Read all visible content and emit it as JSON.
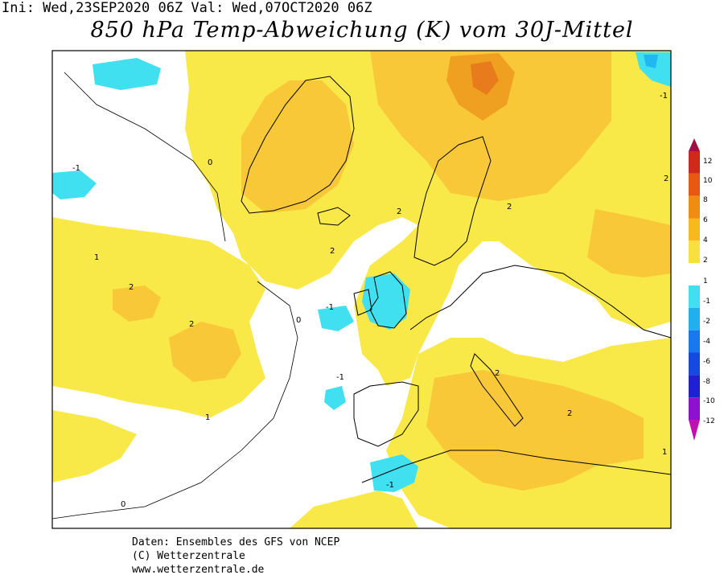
{
  "header": {
    "run_info": "Ini: Wed,23SEP2020 06Z Val: Wed,07OCT2020 06Z",
    "title": "850 hPa Temp-Abweichung (K) vom 30J-Mittel"
  },
  "legend": {
    "ticks": [
      "12",
      "10",
      "8",
      "6",
      "4",
      "2",
      "1",
      "-1",
      "-2",
      "-4",
      "-6",
      "-8",
      "-10",
      "-12"
    ],
    "colors": {
      "12": "#a01040",
      "10": "#d0281c",
      "8": "#e85810",
      "6": "#f08c10",
      "4": "#f8b820",
      "2": "#f8e040",
      "1": "#ffffff",
      "m1": "#40e0f0",
      "m2": "#20b0f0",
      "m4": "#1878f0",
      "m6": "#1848e0",
      "m8": "#2020d0",
      "m10": "#9010d0",
      "m12": "#c010b0"
    }
  },
  "map_colors": {
    "anom_0_1": "#ffffff",
    "anom_1_2": "#f8e848",
    "anom_2_4": "#f8c838",
    "anom_4_6": "#f0a020",
    "anom_6_8": "#e87c1c",
    "anom_m1_m2": "#40e0f0",
    "anom_m2_m4": "#20b8f0"
  },
  "contour_labels": [
    {
      "t": "-1"
    },
    {
      "t": "0"
    },
    {
      "t": "1"
    },
    {
      "t": "2"
    }
  ],
  "footer": {
    "line1": "Daten: Ensembles des GFS von NCEP",
    "line2": "(C) Wetterzentrale",
    "line3": "www.wetterzentrale.de"
  }
}
